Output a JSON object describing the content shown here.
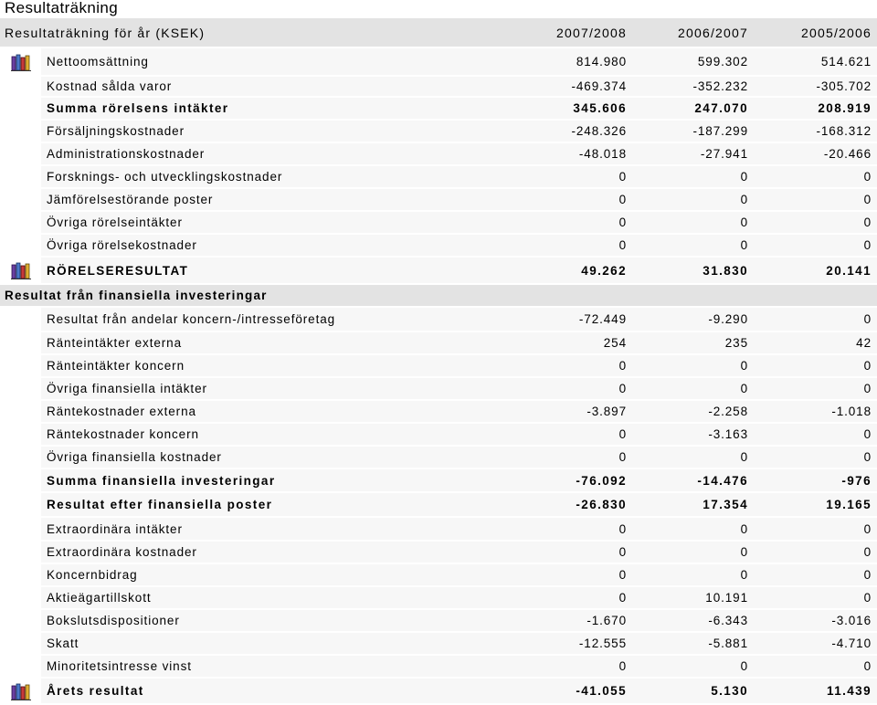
{
  "page_title": "Resultaträkning",
  "header": {
    "title": "Resultaträkning för år (KSEK)",
    "years": [
      "2007/2008",
      "2006/2007",
      "2005/2006"
    ]
  },
  "rows": [
    {
      "label": "Nettoomsättning",
      "v": [
        "814.980",
        "599.302",
        "514.621"
      ],
      "icon": "book-chart-icon",
      "h": 31
    },
    {
      "label": "Kostnad sålda varor",
      "v": [
        "-469.374",
        "-352.232",
        "-305.702"
      ],
      "h": 23
    },
    {
      "label": "Summa rörelsens intäkter",
      "v": [
        "345.606",
        "247.070",
        "208.919"
      ],
      "bold": true,
      "h": 25
    },
    {
      "label": "Försäljningskostnader",
      "v": [
        "-248.326",
        "-187.299",
        "-168.312"
      ],
      "h": 25
    },
    {
      "label": "Administrationskostnader",
      "v": [
        "-48.018",
        "-27.941",
        "-20.466"
      ],
      "h": 25
    },
    {
      "label": "Forsknings- och utvecklingskostnader",
      "v": [
        "0",
        "0",
        "0"
      ],
      "h": 25
    },
    {
      "label": "Jämförelsestörande poster",
      "v": [
        "0",
        "0",
        "0"
      ],
      "h": 25
    },
    {
      "label": "Övriga rörelseintäkter",
      "v": [
        "0",
        "0",
        "0"
      ],
      "h": 25
    },
    {
      "label": "Övriga rörelsekostnader",
      "v": [
        "0",
        "0",
        "0"
      ],
      "h": 25
    },
    {
      "label": "RÖRELSERESULTAT",
      "v": [
        "49.262",
        "31.830",
        "20.141"
      ],
      "bold": true,
      "icon": "book-chart-icon",
      "h": 30
    },
    {
      "section": "Resultat från finansiella investeringar",
      "h": 24
    },
    {
      "label": "Resultat från andelar koncern-/intresseföretag",
      "v": [
        "-72.449",
        "-9.290",
        "0"
      ],
      "h": 27
    },
    {
      "label": "Ränteintäkter externa",
      "v": [
        "254",
        "235",
        "42"
      ],
      "h": 25
    },
    {
      "label": "Ränteintäkter koncern",
      "v": [
        "0",
        "0",
        "0"
      ],
      "h": 25
    },
    {
      "label": "Övriga finansiella intäkter",
      "v": [
        "0",
        "0",
        "0"
      ],
      "h": 25
    },
    {
      "label": "Räntekostnader externa",
      "v": [
        "-3.897",
        "-2.258",
        "-1.018"
      ],
      "h": 25
    },
    {
      "label": "Räntekostnader koncern",
      "v": [
        "0",
        "-3.163",
        "0"
      ],
      "h": 25
    },
    {
      "label": "Övriga finansiella kostnader",
      "v": [
        "0",
        "0",
        "0"
      ],
      "h": 25
    },
    {
      "label": "Summa finansiella investeringar",
      "v": [
        "-76.092",
        "-14.476",
        "-976"
      ],
      "bold": true,
      "h": 26
    },
    {
      "label": "Resultat efter finansiella poster",
      "v": [
        "-26.830",
        "17.354",
        "19.165"
      ],
      "bold": true,
      "h": 27
    },
    {
      "label": "Extraordinära intäkter",
      "v": [
        "0",
        "0",
        "0"
      ],
      "h": 26
    },
    {
      "label": "Extraordinära kostnader",
      "v": [
        "0",
        "0",
        "0"
      ],
      "h": 25
    },
    {
      "label": "Koncernbidrag",
      "v": [
        "0",
        "0",
        "0"
      ],
      "h": 25
    },
    {
      "label": "Aktieägartillskott",
      "v": [
        "0",
        "10.191",
        "0"
      ],
      "h": 25
    },
    {
      "label": "Bokslutsdispositioner",
      "v": [
        "-1.670",
        "-6.343",
        "-3.016"
      ],
      "h": 25
    },
    {
      "label": "Skatt",
      "v": [
        "-12.555",
        "-5.881",
        "-4.710"
      ],
      "h": 25
    },
    {
      "label": "Minoritetsintresse vinst",
      "v": [
        "0",
        "0",
        "0"
      ],
      "h": 25
    },
    {
      "label": "Årets resultat",
      "v": [
        "-41.055",
        "5.130",
        "11.439"
      ],
      "bold": true,
      "icon": "book-chart-icon",
      "h": 29
    }
  ]
}
